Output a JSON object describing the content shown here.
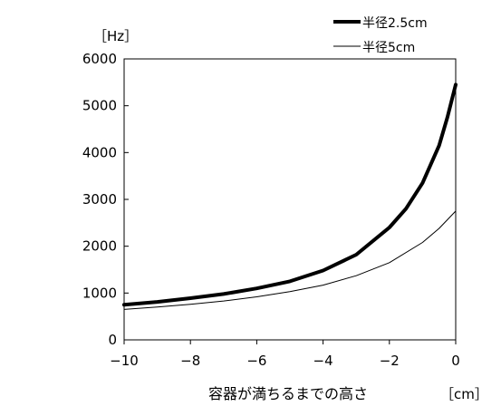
{
  "chart_data": {
    "type": "line",
    "xlabel": "容器が満ちるまでの高さ",
    "xunit": "［cm］",
    "yunit": "［Hz］",
    "xlim": [
      -10,
      0
    ],
    "ylim": [
      0,
      6000
    ],
    "xticks": [
      -10,
      -8,
      -6,
      -4,
      -2,
      0
    ],
    "yticks": [
      0,
      1000,
      2000,
      3000,
      4000,
      5000,
      6000
    ],
    "grid": false,
    "legend_position": "top-right",
    "series": [
      {
        "name": "半径2.5cm",
        "line_width": "thick",
        "color": "#000000",
        "x": [
          -10,
          -9,
          -8,
          -7,
          -6,
          -5,
          -4,
          -3,
          -2,
          -1.5,
          -1,
          -0.5,
          -0.25,
          0
        ],
        "y": [
          750,
          810,
          890,
          980,
          1100,
          1250,
          1480,
          1820,
          2400,
          2800,
          3350,
          4150,
          4750,
          5450
        ]
      },
      {
        "name": "半径5cm",
        "line_width": "thin",
        "color": "#000000",
        "x": [
          -10,
          -9,
          -8,
          -7,
          -6,
          -5,
          -4,
          -3,
          -2,
          -1,
          -0.5,
          0
        ],
        "y": [
          650,
          700,
          760,
          830,
          920,
          1030,
          1170,
          1370,
          1650,
          2080,
          2380,
          2750
        ]
      }
    ]
  }
}
